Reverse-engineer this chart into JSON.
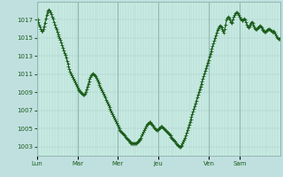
{
  "background_color": "#c0e0e0",
  "plot_bg_color": "#c8ece4",
  "line_color": "#1a5c1a",
  "marker": "+",
  "marker_size": 2.5,
  "line_width": 0.7,
  "yticks": [
    1003,
    1005,
    1007,
    1009,
    1011,
    1013,
    1015,
    1017
  ],
  "ylim": [
    1002.0,
    1019.0
  ],
  "xtick_labels": [
    "Lun",
    "Mar",
    "Mer",
    "Jeu",
    "Ven",
    "Sam"
  ],
  "xtick_positions": [
    0,
    0.167,
    0.333,
    0.5,
    0.708,
    0.833
  ],
  "grid_color": "#90b8b0",
  "minor_grid_color": "#a8ccc4",
  "n_points": 300,
  "data_points": [
    1017.0,
    1017.0,
    1016.8,
    1016.5,
    1016.3,
    1016.0,
    1015.8,
    1015.8,
    1016.0,
    1016.3,
    1016.7,
    1017.1,
    1017.5,
    1017.8,
    1018.0,
    1018.1,
    1018.0,
    1017.8,
    1017.6,
    1017.3,
    1017.1,
    1016.8,
    1016.5,
    1016.2,
    1016.0,
    1015.7,
    1015.4,
    1015.2,
    1015.0,
    1014.8,
    1014.5,
    1014.2,
    1013.9,
    1013.6,
    1013.3,
    1013.1,
    1012.8,
    1012.5,
    1012.2,
    1011.9,
    1011.6,
    1011.3,
    1011.1,
    1010.9,
    1010.7,
    1010.5,
    1010.3,
    1010.1,
    1009.9,
    1009.7,
    1009.5,
    1009.3,
    1009.2,
    1009.1,
    1009.0,
    1008.9,
    1008.8,
    1008.7,
    1008.7,
    1008.8,
    1009.0,
    1009.3,
    1009.6,
    1009.9,
    1010.2,
    1010.5,
    1010.7,
    1010.9,
    1011.0,
    1011.1,
    1011.0,
    1010.9,
    1010.8,
    1010.6,
    1010.4,
    1010.2,
    1010.0,
    1009.8,
    1009.6,
    1009.4,
    1009.2,
    1009.0,
    1008.8,
    1008.6,
    1008.4,
    1008.2,
    1008.0,
    1007.8,
    1007.6,
    1007.4,
    1007.2,
    1007.0,
    1006.8,
    1006.6,
    1006.4,
    1006.2,
    1006.0,
    1005.8,
    1005.6,
    1005.4,
    1005.2,
    1005.0,
    1004.8,
    1004.7,
    1004.6,
    1004.5,
    1004.4,
    1004.3,
    1004.2,
    1004.1,
    1004.0,
    1003.9,
    1003.8,
    1003.7,
    1003.6,
    1003.5,
    1003.4,
    1003.4,
    1003.4,
    1003.4,
    1003.4,
    1003.4,
    1003.4,
    1003.5,
    1003.6,
    1003.7,
    1003.8,
    1003.9,
    1004.0,
    1004.2,
    1004.4,
    1004.6,
    1004.8,
    1005.0,
    1005.2,
    1005.4,
    1005.5,
    1005.6,
    1005.7,
    1005.7,
    1005.6,
    1005.5,
    1005.4,
    1005.3,
    1005.1,
    1005.0,
    1004.9,
    1004.8,
    1004.8,
    1004.9,
    1005.0,
    1005.1,
    1005.2,
    1005.2,
    1005.2,
    1005.1,
    1005.0,
    1004.9,
    1004.8,
    1004.7,
    1004.6,
    1004.5,
    1004.4,
    1004.3,
    1004.2,
    1004.1,
    1004.0,
    1003.9,
    1003.8,
    1003.7,
    1003.6,
    1003.4,
    1003.3,
    1003.2,
    1003.1,
    1003.0,
    1003.0,
    1003.1,
    1003.2,
    1003.4,
    1003.6,
    1003.8,
    1004.0,
    1004.2,
    1004.5,
    1004.8,
    1005.1,
    1005.4,
    1005.7,
    1006.0,
    1006.3,
    1006.6,
    1006.9,
    1007.2,
    1007.5,
    1007.8,
    1008.1,
    1008.4,
    1008.7,
    1009.0,
    1009.3,
    1009.6,
    1009.9,
    1010.2,
    1010.5,
    1010.8,
    1011.1,
    1011.4,
    1011.7,
    1012.0,
    1012.3,
    1012.6,
    1012.9,
    1013.2,
    1013.5,
    1013.8,
    1014.1,
    1014.4,
    1014.7,
    1015.0,
    1015.3,
    1015.6,
    1015.9,
    1016.1,
    1016.3,
    1016.4,
    1016.3,
    1016.2,
    1016.0,
    1015.8,
    1015.6,
    1016.0,
    1016.5,
    1017.0,
    1017.2,
    1017.3,
    1017.2,
    1017.0,
    1016.8,
    1016.7,
    1016.8,
    1017.0,
    1017.3,
    1017.5,
    1017.7,
    1017.8,
    1017.8,
    1017.7,
    1017.5,
    1017.3,
    1017.1,
    1017.0,
    1016.9,
    1016.9,
    1017.0,
    1017.1,
    1017.0,
    1016.8,
    1016.5,
    1016.3,
    1016.2,
    1016.3,
    1016.5,
    1016.7,
    1016.8,
    1016.7,
    1016.5,
    1016.3,
    1016.1,
    1016.0,
    1016.0,
    1016.1,
    1016.2,
    1016.3,
    1016.4,
    1016.3,
    1016.2,
    1016.0,
    1015.9,
    1015.8,
    1015.7,
    1015.7,
    1015.8,
    1015.9,
    1016.0,
    1016.0,
    1016.0,
    1015.9,
    1015.8,
    1015.7,
    1015.7,
    1015.8,
    1015.7,
    1015.5,
    1015.3,
    1015.1,
    1015.0,
    1014.9,
    1014.9,
    1015.0
  ]
}
